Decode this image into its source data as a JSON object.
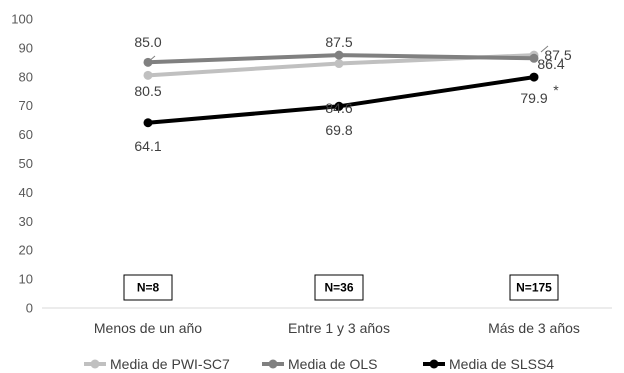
{
  "chart_data": {
    "type": "line",
    "categories": [
      "Menos de un año",
      "Entre 1 y 3 años",
      "Más de 3 años"
    ],
    "ylim": [
      0,
      100
    ],
    "yticks": [
      0,
      10,
      20,
      30,
      40,
      50,
      60,
      70,
      80,
      90,
      100
    ],
    "grid": false,
    "legend_position": "bottom",
    "series": [
      {
        "name": "Media de PWI-SC7",
        "values": [
          80.5,
          84.6,
          87.5
        ],
        "labels": [
          "80.5",
          "84.6",
          "87.5"
        ],
        "color": "#c0c0c0"
      },
      {
        "name": "Media de OLS",
        "values": [
          85.0,
          87.5,
          86.4
        ],
        "labels": [
          "85.0",
          "87.5",
          "86.4"
        ],
        "color": "#808080"
      },
      {
        "name": "Media de SLSS4",
        "values": [
          64.1,
          69.8,
          79.9
        ],
        "labels": [
          "64.1",
          "69.8",
          "79.9"
        ],
        "color": "#000000"
      }
    ],
    "n_labels": [
      "N=8",
      "N=36",
      "N=175"
    ],
    "annotation": "*"
  }
}
